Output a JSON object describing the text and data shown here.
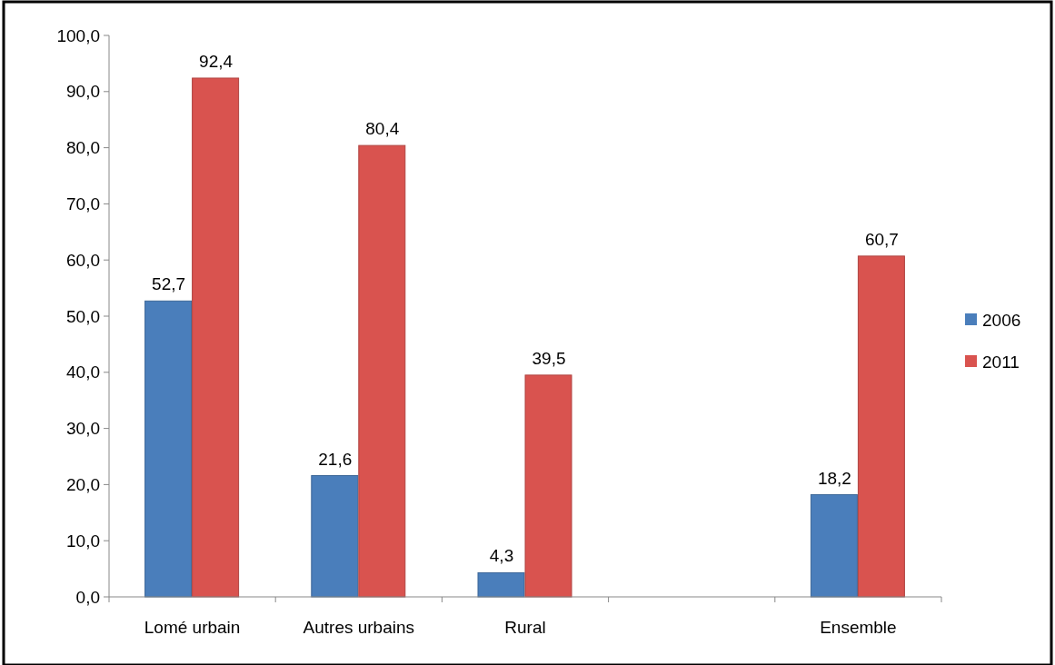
{
  "chart_data": {
    "type": "bar",
    "categories": [
      "Lomé urbain",
      "Autres urbains",
      "Rural",
      null,
      "Ensemble"
    ],
    "series": [
      {
        "name": "2006",
        "color": "#4a7ebb",
        "values": [
          52.7,
          21.6,
          4.3,
          null,
          18.2
        ],
        "value_labels": [
          "52,7",
          "21,6",
          "4,3",
          null,
          "18,2"
        ]
      },
      {
        "name": "2011",
        "color": "#d9534f",
        "values": [
          92.4,
          80.4,
          39.5,
          null,
          60.7
        ],
        "value_labels": [
          "92,4",
          "80,4",
          "39,5",
          null,
          "60,7"
        ]
      }
    ],
    "ylim": [
      0,
      100
    ],
    "yticks": [
      {
        "value": 0,
        "label": "0,0"
      },
      {
        "value": 10,
        "label": "10,0"
      },
      {
        "value": 20,
        "label": "20,0"
      },
      {
        "value": 30,
        "label": "30,0"
      },
      {
        "value": 40,
        "label": "40,0"
      },
      {
        "value": 50,
        "label": "50,0"
      },
      {
        "value": 60,
        "label": "60,0"
      },
      {
        "value": 70,
        "label": "70,0"
      },
      {
        "value": 80,
        "label": "80,0"
      },
      {
        "value": 90,
        "label": "90,0"
      },
      {
        "value": 100,
        "label": "100,0"
      }
    ],
    "grid": false,
    "legend": "right"
  }
}
